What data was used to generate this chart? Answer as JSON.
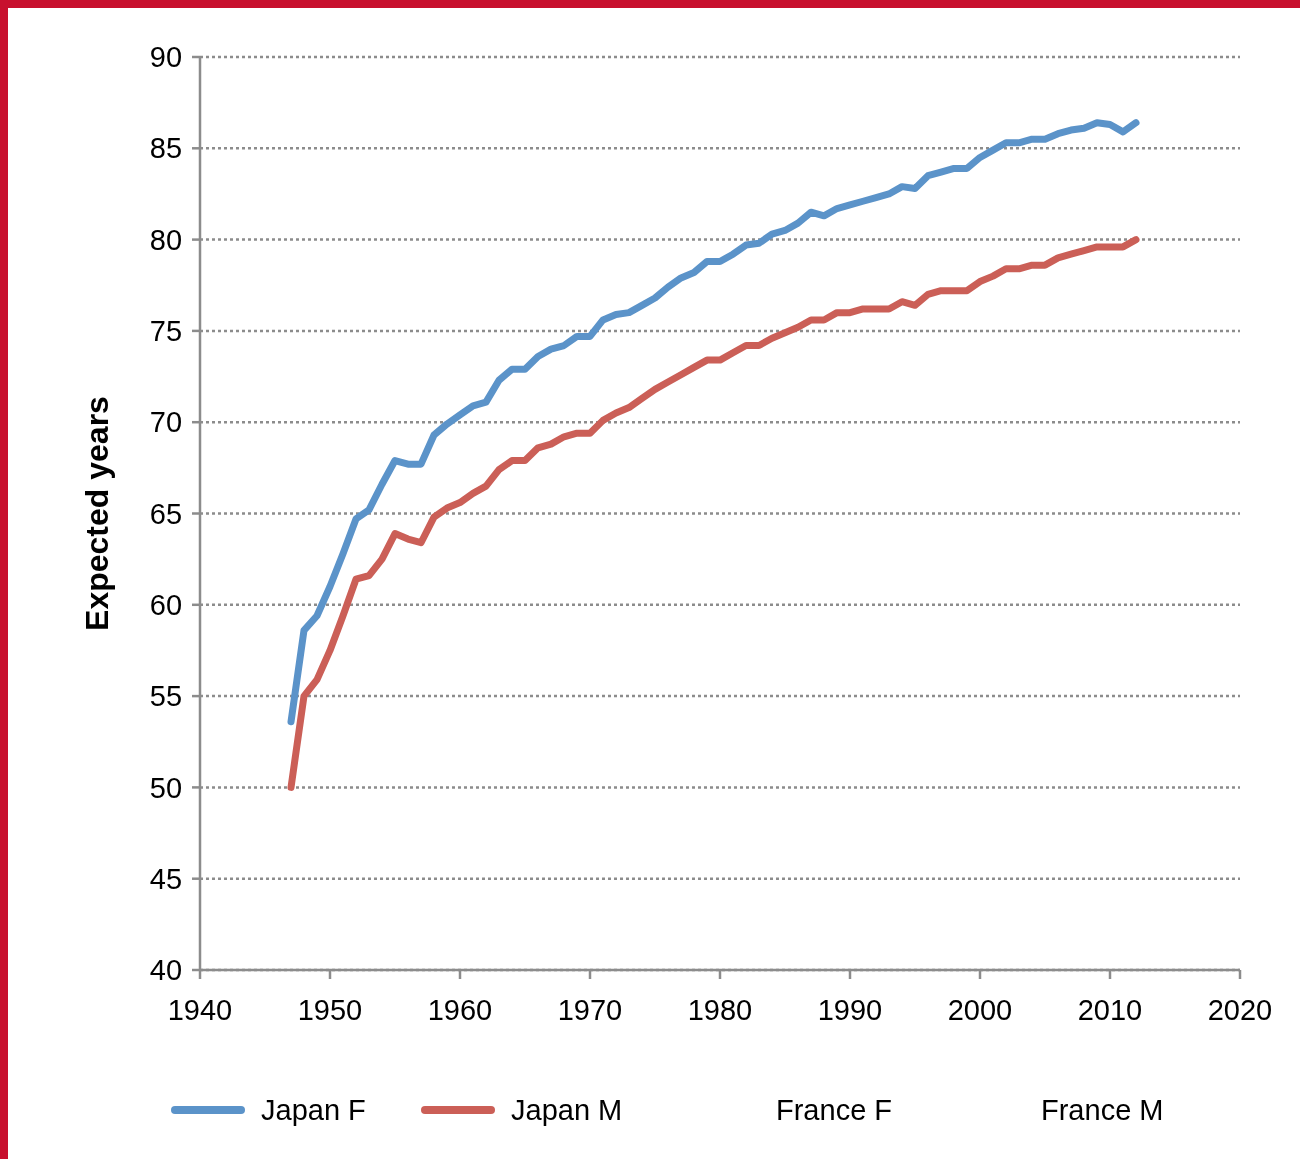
{
  "chart_data": {
    "type": "line",
    "ylabel": "Expected years",
    "xlim": [
      1940,
      2020
    ],
    "xticks": [
      1940,
      1950,
      1960,
      1970,
      1980,
      1990,
      2000,
      2010,
      2020
    ],
    "ylim": [
      40,
      90
    ],
    "yticks": [
      40,
      45,
      50,
      55,
      60,
      65,
      70,
      75,
      80,
      85,
      90
    ],
    "grid": "y",
    "legend": "bottom",
    "line_style": "solid",
    "marker": "none",
    "x": [
      1947,
      1948,
      1949,
      1950,
      1951,
      1952,
      1953,
      1954,
      1955,
      1956,
      1957,
      1958,
      1959,
      1960,
      1961,
      1962,
      1963,
      1964,
      1965,
      1966,
      1967,
      1968,
      1969,
      1970,
      1971,
      1972,
      1973,
      1974,
      1975,
      1976,
      1977,
      1978,
      1979,
      1980,
      1981,
      1982,
      1983,
      1984,
      1985,
      1986,
      1987,
      1988,
      1989,
      1990,
      1991,
      1992,
      1993,
      1994,
      1995,
      1996,
      1997,
      1998,
      1999,
      2000,
      2001,
      2002,
      2003,
      2004,
      2005,
      2006,
      2007,
      2008,
      2009,
      2010,
      2011,
      2012
    ],
    "series": [
      {
        "name": "Japan F",
        "color": "#5b93c9",
        "values": [
          53.6,
          58.6,
          59.4,
          61.0,
          62.8,
          64.7,
          65.2,
          66.6,
          67.9,
          67.7,
          67.7,
          69.3,
          69.9,
          70.4,
          70.9,
          71.1,
          72.3,
          72.9,
          72.9,
          73.6,
          74.0,
          74.2,
          74.7,
          74.7,
          75.6,
          75.9,
          76.0,
          76.4,
          76.8,
          77.4,
          77.9,
          78.2,
          78.8,
          78.8,
          79.2,
          79.7,
          79.8,
          80.3,
          80.5,
          80.9,
          81.5,
          81.3,
          81.7,
          81.9,
          82.1,
          82.3,
          82.5,
          82.9,
          82.8,
          83.5,
          83.7,
          83.9,
          83.9,
          84.5,
          84.9,
          85.3,
          85.3,
          85.5,
          85.5,
          85.8,
          86.0,
          86.1,
          86.4,
          86.3,
          85.9,
          86.4
        ]
      },
      {
        "name": "Japan M",
        "color": "#cb5f57",
        "values": [
          50.0,
          55.0,
          55.9,
          57.5,
          59.4,
          61.4,
          61.6,
          62.5,
          63.9,
          63.6,
          63.4,
          64.8,
          65.3,
          65.6,
          66.1,
          66.5,
          67.4,
          67.9,
          67.9,
          68.6,
          68.8,
          69.2,
          69.4,
          69.4,
          70.1,
          70.5,
          70.8,
          71.3,
          71.8,
          72.2,
          72.6,
          73.0,
          73.4,
          73.4,
          73.8,
          74.2,
          74.2,
          74.6,
          74.9,
          75.2,
          75.6,
          75.6,
          76.0,
          76.0,
          76.2,
          76.2,
          76.2,
          76.6,
          76.4,
          77.0,
          77.2,
          77.2,
          77.2,
          77.7,
          78.0,
          78.4,
          78.4,
          78.6,
          78.6,
          79.0,
          79.2,
          79.4,
          79.6,
          79.6,
          79.6,
          80.0
        ]
      },
      {
        "name": "France F",
        "values": [
          null,
          null,
          null,
          null,
          null,
          null,
          null,
          null,
          null,
          null,
          null,
          null,
          null,
          null,
          null,
          null,
          null,
          null,
          null,
          null,
          null,
          null,
          null,
          null,
          null,
          null,
          null,
          null,
          null,
          null,
          null,
          null,
          null,
          null,
          null,
          null,
          null,
          null,
          null,
          null,
          null,
          null,
          null,
          null,
          null,
          null,
          null,
          null,
          null,
          null,
          null,
          null,
          null,
          null,
          null,
          null,
          null,
          null,
          null,
          null,
          null,
          null,
          null,
          null,
          null,
          null
        ]
      },
      {
        "name": "France M",
        "values": [
          null,
          null,
          null,
          null,
          null,
          null,
          null,
          null,
          null,
          null,
          null,
          null,
          null,
          null,
          null,
          null,
          null,
          null,
          null,
          null,
          null,
          null,
          null,
          null,
          null,
          null,
          null,
          null,
          null,
          null,
          null,
          null,
          null,
          null,
          null,
          null,
          null,
          null,
          null,
          null,
          null,
          null,
          null,
          null,
          null,
          null,
          null,
          null,
          null,
          null,
          null,
          null,
          null,
          null,
          null,
          null,
          null,
          null,
          null,
          null,
          null,
          null,
          null,
          null,
          null,
          null
        ]
      }
    ]
  }
}
